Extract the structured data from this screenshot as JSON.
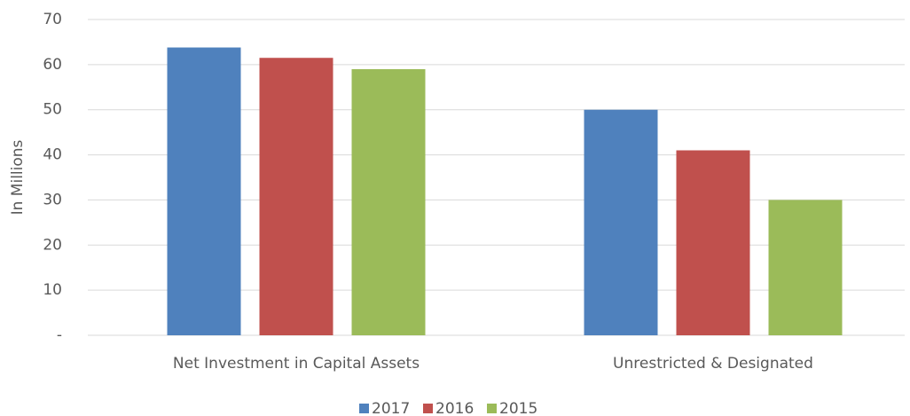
{
  "chart_data": {
    "type": "bar",
    "categories": [
      "Net Investment in Capital Assets",
      "Unrestricted & Designated"
    ],
    "series": [
      {
        "name": "2017",
        "color": "#4f81bd",
        "values": [
          63.8,
          50
        ]
      },
      {
        "name": "2016",
        "color": "#c0504d",
        "values": [
          61.5,
          41
        ]
      },
      {
        "name": "2015",
        "color": "#9bbb59",
        "values": [
          59,
          30
        ]
      }
    ],
    "y_label": "In Millions",
    "ylim": [
      0,
      70
    ],
    "yticks": [
      {
        "value": 0,
        "label": "-"
      },
      10,
      20,
      30,
      40,
      50,
      60,
      70
    ],
    "grid": true,
    "legend": "bottom"
  }
}
